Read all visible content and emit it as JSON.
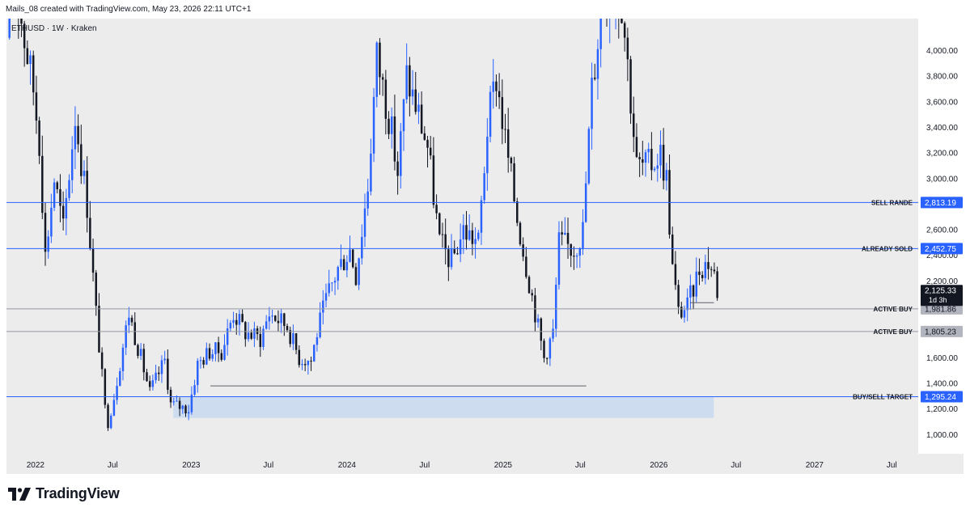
{
  "header": {
    "caption": "Mails_08 created with TradingView.com, May 23, 2026 22:11 UTC+1"
  },
  "symbol": {
    "label": "ETHUSD · 1W · Kraken"
  },
  "footer": {
    "brand": "TradingView"
  },
  "colors": {
    "up": "#2962ff",
    "down": "#131722",
    "level_line": "#2962ff",
    "grey_line": "#9598a1",
    "zone": "#c9d9ee",
    "price_badge": "#131722",
    "grey_badge": "#b2b5be"
  },
  "chart_data": {
    "type": "candlestick",
    "ylim": [
      850,
      4250
    ],
    "y_ticks": [
      1000,
      1200,
      1400,
      1600,
      1800,
      2000,
      2200,
      2400,
      2600,
      2800,
      3000,
      3200,
      3400,
      3600,
      3800,
      4000
    ],
    "y_tick_labels": [
      "1,000.00",
      "1,200.00",
      "1,400.00",
      "1,600.00",
      "1,800.00",
      "2,000.00",
      "2,200.00",
      "2,400.00",
      "2,600.00",
      "2,800.00",
      "3,000.00",
      "3,200.00",
      "3,400.00",
      "3,600.00",
      "3,800.00",
      "4,000.00"
    ],
    "x_range": [
      "2021-10-25",
      "2027-09-01"
    ],
    "x_ticks": [
      {
        "date": "2022-01-01",
        "label": "2022"
      },
      {
        "date": "2022-07-01",
        "label": "Jul"
      },
      {
        "date": "2023-01-01",
        "label": "2023"
      },
      {
        "date": "2023-07-01",
        "label": "Jul"
      },
      {
        "date": "2024-01-01",
        "label": "2024"
      },
      {
        "date": "2024-07-01",
        "label": "Jul"
      },
      {
        "date": "2025-01-01",
        "label": "2025"
      },
      {
        "date": "2025-07-01",
        "label": "Jul"
      },
      {
        "date": "2026-01-01",
        "label": "2026"
      },
      {
        "date": "2026-07-01",
        "label": "Jul"
      },
      {
        "date": "2027-01-01",
        "label": "2027"
      },
      {
        "date": "2027-07-01",
        "label": "Jul"
      }
    ],
    "levels": [
      {
        "value": 2813.19,
        "label": "SELL RANDE",
        "price": "2,813.19",
        "color": "#2962ff",
        "badge": "blue"
      },
      {
        "value": 2452.75,
        "label": "ALREADY SOLD",
        "price": "2,452.75",
        "color": "#2962ff",
        "badge": "blue"
      },
      {
        "value": 1981.86,
        "label": "ACTIVE BUY",
        "price": "1,981.86",
        "color": "#9598a1",
        "badge": "grey"
      },
      {
        "value": 1805.23,
        "label": "ACTIVE BUY",
        "price": "1,805.23",
        "color": "#9598a1",
        "badge": "grey"
      },
      {
        "value": 1295.24,
        "label": "BUY/SELL TARGET",
        "price": "1,295.24",
        "color": "#2962ff",
        "badge": "blue"
      }
    ],
    "current_price": {
      "value": 2125.33,
      "price": "2,125.33",
      "countdown": "1d 3h"
    },
    "zone": {
      "from": "2022-11-20",
      "to": "2026-05-10",
      "top": 1295.24,
      "bottom": 1130
    },
    "support_line": {
      "from": "2023-02-15",
      "to": "2025-07-15",
      "value": 1380
    },
    "short_line": {
      "from": "2026-03-15",
      "to": "2026-05-10",
      "value": 2030
    },
    "anchors": [
      {
        "date": "2021-10-25",
        "p": 4100
      },
      {
        "date": "2021-11-08",
        "p": 4700
      },
      {
        "date": "2021-12-06",
        "p": 4100
      },
      {
        "date": "2021-12-27",
        "p": 3700
      },
      {
        "date": "2022-01-10",
        "p": 3300
      },
      {
        "date": "2022-01-24",
        "p": 2400
      },
      {
        "date": "2022-02-14",
        "p": 3000
      },
      {
        "date": "2022-03-07",
        "p": 2600
      },
      {
        "date": "2022-04-04",
        "p": 3500
      },
      {
        "date": "2022-05-02",
        "p": 2800
      },
      {
        "date": "2022-05-23",
        "p": 1950
      },
      {
        "date": "2022-06-13",
        "p": 1200
      },
      {
        "date": "2022-06-20",
        "p": 1100
      },
      {
        "date": "2022-07-04",
        "p": 1300
      },
      {
        "date": "2022-08-08",
        "p": 1950
      },
      {
        "date": "2022-09-05",
        "p": 1600
      },
      {
        "date": "2022-09-26",
        "p": 1330
      },
      {
        "date": "2022-10-31",
        "p": 1580
      },
      {
        "date": "2022-11-14",
        "p": 1240
      },
      {
        "date": "2022-12-26",
        "p": 1200
      },
      {
        "date": "2023-01-16",
        "p": 1550
      },
      {
        "date": "2023-02-13",
        "p": 1650
      },
      {
        "date": "2023-03-13",
        "p": 1650
      },
      {
        "date": "2023-04-10",
        "p": 1950
      },
      {
        "date": "2023-05-08",
        "p": 1800
      },
      {
        "date": "2023-06-12",
        "p": 1750
      },
      {
        "date": "2023-07-03",
        "p": 1950
      },
      {
        "date": "2023-08-14",
        "p": 1850
      },
      {
        "date": "2023-09-11",
        "p": 1600
      },
      {
        "date": "2023-10-09",
        "p": 1580
      },
      {
        "date": "2023-10-23",
        "p": 1800
      },
      {
        "date": "2023-11-13",
        "p": 2050
      },
      {
        "date": "2023-12-11",
        "p": 2300
      },
      {
        "date": "2024-01-08",
        "p": 2450
      },
      {
        "date": "2024-01-22",
        "p": 2250
      },
      {
        "date": "2024-02-19",
        "p": 2950
      },
      {
        "date": "2024-03-11",
        "p": 3950
      },
      {
        "date": "2024-04-08",
        "p": 3500
      },
      {
        "date": "2024-04-29",
        "p": 3050
      },
      {
        "date": "2024-05-20",
        "p": 3800
      },
      {
        "date": "2024-06-17",
        "p": 3500
      },
      {
        "date": "2024-07-08",
        "p": 3250
      },
      {
        "date": "2024-08-05",
        "p": 2500
      },
      {
        "date": "2024-09-02",
        "p": 2350
      },
      {
        "date": "2024-09-30",
        "p": 2600
      },
      {
        "date": "2024-11-04",
        "p": 2500
      },
      {
        "date": "2024-11-25",
        "p": 3400
      },
      {
        "date": "2024-12-16",
        "p": 3800
      },
      {
        "date": "2025-01-06",
        "p": 3300
      },
      {
        "date": "2025-02-03",
        "p": 2700
      },
      {
        "date": "2025-03-03",
        "p": 2200
      },
      {
        "date": "2025-04-07",
        "p": 1600
      },
      {
        "date": "2025-04-28",
        "p": 1800
      },
      {
        "date": "2025-05-12",
        "p": 2500
      },
      {
        "date": "2025-06-16",
        "p": 2450
      },
      {
        "date": "2025-07-07",
        "p": 2600
      },
      {
        "date": "2025-07-28",
        "p": 3700
      },
      {
        "date": "2025-08-18",
        "p": 4300
      },
      {
        "date": "2025-09-08",
        "p": 4500
      },
      {
        "date": "2025-10-06",
        "p": 4400
      },
      {
        "date": "2025-10-20",
        "p": 3900
      },
      {
        "date": "2025-11-10",
        "p": 3100
      },
      {
        "date": "2025-12-08",
        "p": 3100
      },
      {
        "date": "2026-01-05",
        "p": 3200
      },
      {
        "date": "2026-01-19",
        "p": 3000
      },
      {
        "date": "2026-02-02",
        "p": 2300
      },
      {
        "date": "2026-02-16",
        "p": 1950
      },
      {
        "date": "2026-03-09",
        "p": 2000
      },
      {
        "date": "2026-04-06",
        "p": 2300
      },
      {
        "date": "2026-04-27",
        "p": 2350
      },
      {
        "date": "2026-05-11",
        "p": 2250
      },
      {
        "date": "2026-05-18",
        "p": 2125
      }
    ]
  }
}
